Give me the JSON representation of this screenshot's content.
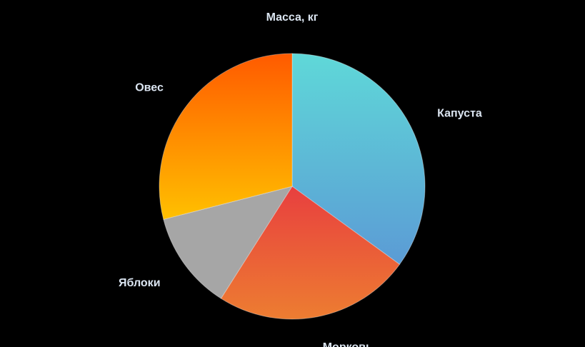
{
  "chart_data": {
    "type": "pie",
    "title": "Масса, кг",
    "categories": [
      "Капуста",
      "Морковь",
      "Яблоки",
      "Овес"
    ],
    "values": [
      35,
      24,
      12,
      29
    ],
    "colors_top": [
      "#5fd8d8",
      "#e83f3f",
      "#a6a6a6",
      "#ff5a00"
    ],
    "colors_bottom": [
      "#5b9bd5",
      "#ed7d31",
      "#a6a6a6",
      "#ffc000"
    ],
    "legend": "none",
    "data_labels": "outside"
  }
}
